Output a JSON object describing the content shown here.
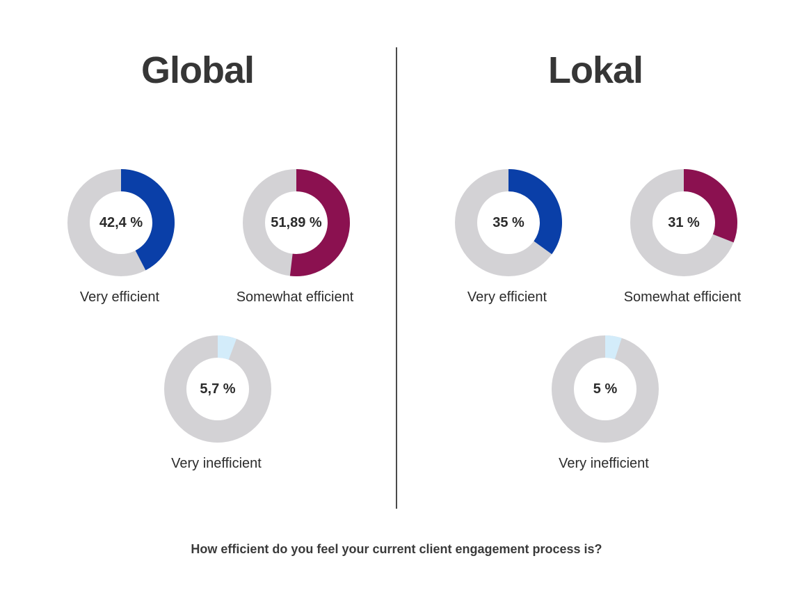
{
  "chart_data": [
    {
      "type": "pie",
      "title": "Global",
      "series": [
        {
          "name": "Very efficient",
          "value": 42.4,
          "label": "42,4 %",
          "color": "#0a3fa8"
        },
        {
          "name": "Somewhat efficient",
          "value": 51.89,
          "label": "51,89 %",
          "color": "#8b1150"
        },
        {
          "name": "Very inefficient",
          "value": 5.7,
          "label": "5,7 %",
          "color": "#d3ecfa"
        }
      ]
    },
    {
      "type": "pie",
      "title": "Lokal",
      "series": [
        {
          "name": "Very efficient",
          "value": 35,
          "label": "35 %",
          "color": "#0a3fa8"
        },
        {
          "name": "Somewhat efficient",
          "value": 31,
          "label": "31 %",
          "color": "#8b1150"
        },
        {
          "name": "Very inefficient",
          "value": 5,
          "label": "5 %",
          "color": "#d3ecfa"
        }
      ]
    }
  ],
  "track_color": "#d3d2d5",
  "question": "How efficient do you feel your current client engagement process is?"
}
